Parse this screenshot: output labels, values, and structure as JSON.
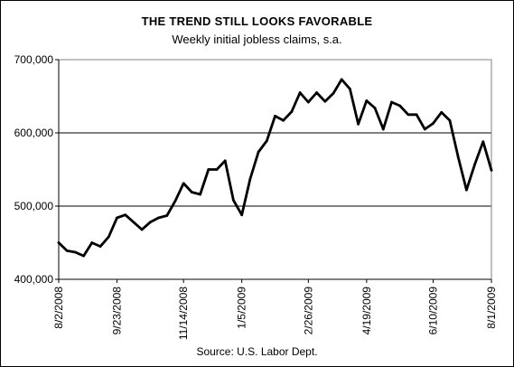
{
  "chart_data": {
    "type": "line",
    "title": "THE TREND STILL LOOKS FAVORABLE",
    "subtitle": "Weekly initial jobless claims, s.a.",
    "source": "Source: U.S. Labor Dept.",
    "ylim": [
      400000,
      700000
    ],
    "y_ticks": [
      {
        "value": 400000,
        "label": "400,000"
      },
      {
        "value": 500000,
        "label": "500,000"
      },
      {
        "value": 600000,
        "label": "600,000"
      },
      {
        "value": 700000,
        "label": "700,000"
      }
    ],
    "x_ticks": [
      {
        "index": 0,
        "label": "8/2/2008"
      },
      {
        "index": 7,
        "label": "9/23/2008"
      },
      {
        "index": 15,
        "label": "11/14/2008"
      },
      {
        "index": 22,
        "label": "1/5/2009"
      },
      {
        "index": 30,
        "label": "2/26/2009"
      },
      {
        "index": 37,
        "label": "4/19/2009"
      },
      {
        "index": 45,
        "label": "6/10/2009"
      },
      {
        "index": 52,
        "label": "8/1/2009"
      }
    ],
    "grid": "horizontal",
    "series": [
      {
        "values": [
          450000,
          439000,
          437000,
          432000,
          450000,
          445000,
          458000,
          484000,
          488000,
          478000,
          468000,
          478000,
          484000,
          487000,
          507000,
          531000,
          519000,
          516000,
          550000,
          550000,
          562000,
          508000,
          488000,
          537000,
          574000,
          589000,
          623000,
          617000,
          629000,
          655000,
          642000,
          655000,
          643000,
          654000,
          673000,
          660000,
          612000,
          644000,
          634000,
          605000,
          642000,
          637000,
          625000,
          625000,
          605000,
          613000,
          628000,
          617000,
          567000,
          522000,
          557000,
          588000,
          549000
        ]
      }
    ],
    "colors": {
      "line": "#000000",
      "grid": "#000000",
      "background": "#ffffff"
    }
  }
}
